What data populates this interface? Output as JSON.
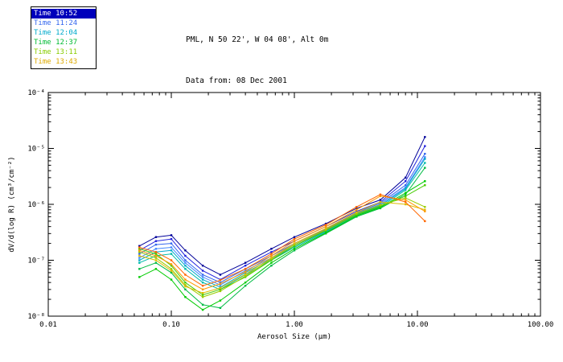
{
  "header": {
    "line1": "PML, N 50 22', W 04 08', Alt 0m",
    "line2": "Data from: 08 Dec 2001"
  },
  "legend": {
    "items": [
      {
        "label": "Time 10:52",
        "color": "#0000bb",
        "selected": true
      },
      {
        "label": "Time 11:24",
        "color": "#3366ee",
        "selected": false
      },
      {
        "label": "Time 12:04",
        "color": "#00aacc",
        "selected": false
      },
      {
        "label": "Time 12:37",
        "color": "#00bb33",
        "selected": false
      },
      {
        "label": "Time 13:11",
        "color": "#88cc00",
        "selected": false
      },
      {
        "label": "Time 13:43",
        "color": "#ddaa00",
        "selected": false
      }
    ]
  },
  "chart_data": {
    "type": "line",
    "title": "",
    "xlabel": "Aerosol Size (μm)",
    "ylabel": "dV/d(log R) (cm³/cm⁻²)",
    "xscale": "log",
    "yscale": "log",
    "xlim": [
      0.01,
      100
    ],
    "ylim": [
      1e-08,
      0.0001
    ],
    "x_ticks": [
      "0.01",
      "0.10",
      "1.00",
      "10.00",
      "100.00"
    ],
    "y_ticks": [
      "10⁻⁸",
      "10⁻⁷",
      "10⁻⁶",
      "10⁻⁵",
      "10⁻⁴"
    ],
    "grid": false,
    "legend_position": "outside-top-left",
    "x": [
      0.055,
      0.075,
      0.1,
      0.13,
      0.18,
      0.25,
      0.4,
      0.65,
      1.0,
      1.8,
      3.2,
      5.0,
      8.0,
      11.5
    ],
    "series": [
      {
        "name": "Time 10:52 run1",
        "color": "#000099",
        "y": [
          1.8e-07,
          2.6e-07,
          2.8e-07,
          1.5e-07,
          8e-08,
          5.5e-08,
          9e-08,
          1.6e-07,
          2.6e-07,
          4.5e-07,
          8.5e-07,
          1.2e-06,
          3e-06,
          1.6e-05
        ]
      },
      {
        "name": "Time 10:52 run2",
        "color": "#2222dd",
        "y": [
          1.5e-07,
          2.2e-07,
          2.4e-07,
          1.2e-07,
          6.5e-08,
          4.5e-08,
          8e-08,
          1.4e-07,
          2.2e-07,
          4e-07,
          7.5e-07,
          1.1e-06,
          2.6e-06,
          1.1e-05
        ]
      },
      {
        "name": "Time 11:24 run1",
        "color": "#3366ee",
        "y": [
          1.3e-07,
          1.9e-07,
          2e-07,
          1e-07,
          5.5e-08,
          4e-08,
          7e-08,
          1.2e-07,
          2e-07,
          3.6e-07,
          7e-07,
          1.05e-06,
          2.2e-06,
          8e-06
        ]
      },
      {
        "name": "Time 11:24 run2",
        "color": "#4488ff",
        "y": [
          1.1e-07,
          1.6e-07,
          1.7e-07,
          9e-08,
          5e-08,
          3.6e-08,
          6.5e-08,
          1.1e-07,
          1.9e-07,
          3.4e-07,
          6.8e-07,
          1e-06,
          2e-06,
          7e-06
        ]
      },
      {
        "name": "Time 12:04 run1",
        "color": "#00aacc",
        "y": [
          1e-07,
          1.4e-07,
          1.5e-07,
          8e-08,
          4.5e-08,
          3.3e-08,
          6e-08,
          1.05e-07,
          1.8e-07,
          3.3e-07,
          6.6e-07,
          9.5e-07,
          1.9e-06,
          6.5e-06
        ]
      },
      {
        "name": "Time 12:04 run2",
        "color": "#00bbaa",
        "y": [
          9e-08,
          1.2e-07,
          1.3e-07,
          7e-08,
          4e-08,
          3e-08,
          5.5e-08,
          1e-07,
          1.7e-07,
          3.2e-07,
          6.4e-07,
          9e-07,
          1.8e-06,
          5.5e-06
        ]
      },
      {
        "name": "Time 12:37 run1",
        "color": "#00bb44",
        "y": [
          7e-08,
          9e-08,
          6e-08,
          3e-08,
          1.6e-08,
          1.4e-08,
          3.5e-08,
          8e-08,
          1.5e-07,
          3e-07,
          6e-07,
          8.5e-07,
          1.5e-06,
          4.5e-06
        ]
      },
      {
        "name": "Time 12:37 run2",
        "color": "#00cc00",
        "y": [
          5e-08,
          7e-08,
          4.5e-08,
          2.2e-08,
          1.3e-08,
          1.9e-08,
          4e-08,
          9e-08,
          1.6e-07,
          3.1e-07,
          6.2e-07,
          8.8e-07,
          1.6e-06,
          2.6e-06
        ]
      },
      {
        "name": "Time 13:11 run1",
        "color": "#44cc00",
        "y": [
          1.6e-07,
          1.3e-07,
          8e-08,
          4e-08,
          2.4e-08,
          3e-08,
          5e-08,
          1e-07,
          1.8e-07,
          3.4e-07,
          6.5e-07,
          9.2e-07,
          1.4e-06,
          2.2e-06
        ]
      },
      {
        "name": "Time 13:11 run2",
        "color": "#99cc00",
        "y": [
          1.4e-07,
          1.1e-07,
          7e-08,
          3.6e-08,
          2.2e-08,
          2.8e-08,
          5.2e-08,
          1.05e-07,
          1.9e-07,
          3.5e-07,
          6.8e-07,
          9.8e-07,
          1.3e-06,
          9e-07
        ]
      },
      {
        "name": "Time 13:43 run1",
        "color": "#ddbb00",
        "y": [
          1.2e-07,
          1e-07,
          6.5e-08,
          3.4e-08,
          2.6e-08,
          3.2e-08,
          5.6e-08,
          1.1e-07,
          2e-07,
          3.7e-07,
          7.2e-07,
          1.1e-06,
          1e-06,
          8e-07
        ]
      },
      {
        "name": "Time 13:43 run2",
        "color": "#ff9900",
        "y": [
          1.5e-07,
          1.2e-07,
          8.5e-08,
          4.5e-08,
          3e-08,
          3.8e-08,
          6.2e-08,
          1.2e-07,
          2.2e-07,
          4e-07,
          8e-07,
          1.4e-06,
          1.2e-06,
          7.5e-07
        ]
      },
      {
        "name": "Time 13:43 run3",
        "color": "#ff6600",
        "y": [
          1.7e-07,
          1.4e-07,
          1e-07,
          5.5e-08,
          3.5e-08,
          4.4e-08,
          7e-08,
          1.3e-07,
          2.4e-07,
          4.3e-07,
          9e-07,
          1.5e-06,
          1.1e-06,
          5e-07
        ]
      }
    ]
  }
}
